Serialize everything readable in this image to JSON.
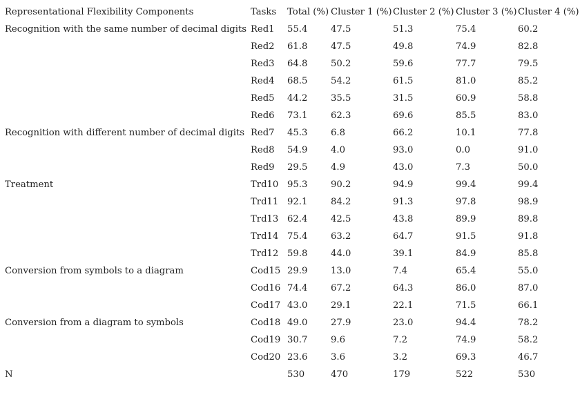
{
  "table": {
    "headers": [
      "Representational Flexibility Components",
      "Tasks",
      "Total (%)",
      "Cluster 1 (%)",
      "Cluster 2 (%)",
      "Cluster 3 (%)",
      "Cluster 4 (%)"
    ],
    "rows": [
      [
        "Recognition with the same number of decimal digits",
        "Red1",
        "55.4",
        "47.5",
        "51.3",
        "75.4",
        "60.2"
      ],
      [
        "",
        "Red2",
        "61.8",
        "47.5",
        "49.8",
        "74.9",
        "82.8"
      ],
      [
        "",
        "Red3",
        "64.8",
        "50.2",
        "59.6",
        "77.7",
        "79.5"
      ],
      [
        "",
        "Red4",
        "68.5",
        "54.2",
        "61.5",
        "81.0",
        "85.2"
      ],
      [
        "",
        "Red5",
        "44.2",
        "35.5",
        "31.5",
        "60.9",
        "58.8"
      ],
      [
        "",
        "Red6",
        "73.1",
        "62.3",
        "69.6",
        "85.5",
        "83.0"
      ],
      [
        "Recognition with different number of decimal digits",
        "Red7",
        "45.3",
        "6.8",
        "66.2",
        "10.1",
        "77.8"
      ],
      [
        "",
        "Red8",
        "54.9",
        "4.0",
        "93.0",
        "0.0",
        "91.0"
      ],
      [
        "",
        "Red9",
        "29.5",
        "4.9",
        "43.0",
        "7.3",
        "50.0"
      ],
      [
        "Treatment",
        "Trd10",
        "95.3",
        "90.2",
        "94.9",
        "99.4",
        "99.4"
      ],
      [
        "",
        "Trd11",
        "92.1",
        "84.2",
        "91.3",
        "97.8",
        "98.9"
      ],
      [
        "",
        "Trd13",
        "62.4",
        "42.5",
        "43.8",
        "89.9",
        "89.8"
      ],
      [
        "",
        "Trd14",
        "75.4",
        "63.2",
        "64.7",
        "91.5",
        "91.8"
      ],
      [
        "",
        "Trd12",
        "59.8",
        "44.0",
        "39.1",
        "84.9",
        "85.8"
      ],
      [
        "Conversion from symbols to a diagram",
        "Cod15",
        "29.9",
        "13.0",
        "7.4",
        "65.4",
        "55.0"
      ],
      [
        "",
        "Cod16",
        "74.4",
        "67.2",
        "64.3",
        "86.0",
        "87.0"
      ],
      [
        "",
        "Cod17",
        "43.0",
        "29.1",
        "22.1",
        "71.5",
        "66.1"
      ],
      [
        "Conversion from a diagram to symbols",
        "Cod18",
        "49.0",
        "27.9",
        "23.0",
        "94.4",
        "78.2"
      ],
      [
        "",
        "Cod19",
        "30.7",
        "9.6",
        "7.2",
        "74.9",
        "58.2"
      ],
      [
        "",
        "Cod20",
        "23.6",
        "3.6",
        "3.2",
        "69.3",
        "46.7"
      ],
      [
        "N",
        "",
        "530",
        "470",
        "179",
        "522",
        "530"
      ]
    ]
  }
}
